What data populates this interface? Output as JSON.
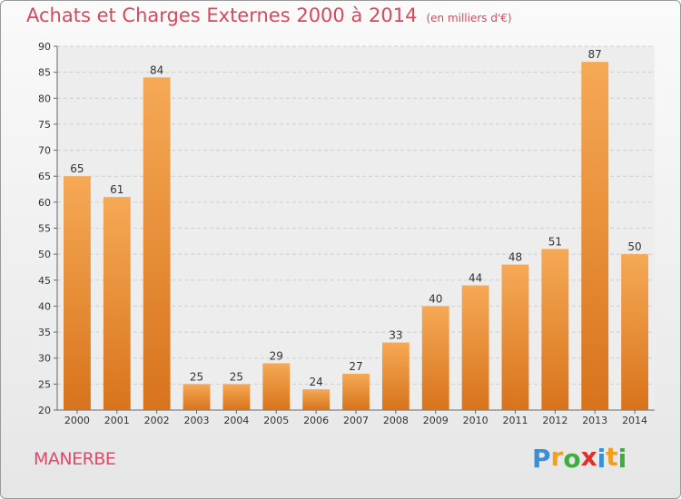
{
  "chart_data": {
    "type": "bar",
    "title": "Achats et Charges Externes 2000 à 2014",
    "subtitle": "(en milliers d'€)",
    "categories": [
      "2000",
      "2001",
      "2002",
      "2003",
      "2004",
      "2005",
      "2006",
      "2007",
      "2008",
      "2009",
      "2010",
      "2011",
      "2012",
      "2013",
      "2014"
    ],
    "values": [
      65,
      61,
      84,
      25,
      25,
      29,
      24,
      27,
      33,
      40,
      44,
      48,
      51,
      87,
      50
    ],
    "ylim": [
      20,
      90
    ],
    "yticks": [
      20,
      25,
      30,
      35,
      40,
      45,
      50,
      55,
      60,
      65,
      70,
      75,
      80,
      85,
      90
    ],
    "grid": true,
    "bar_color": "#f0923a"
  },
  "footer": {
    "place": "MANERBE",
    "logo_letters": [
      "P",
      "r",
      "o",
      "x",
      "i",
      "t",
      "i"
    ],
    "logo_colors": [
      "#3c8fd4",
      "#f0a020",
      "#3cae3c",
      "#e0302a",
      "#3c8fd4",
      "#f0a020",
      "#3cae3c"
    ]
  }
}
